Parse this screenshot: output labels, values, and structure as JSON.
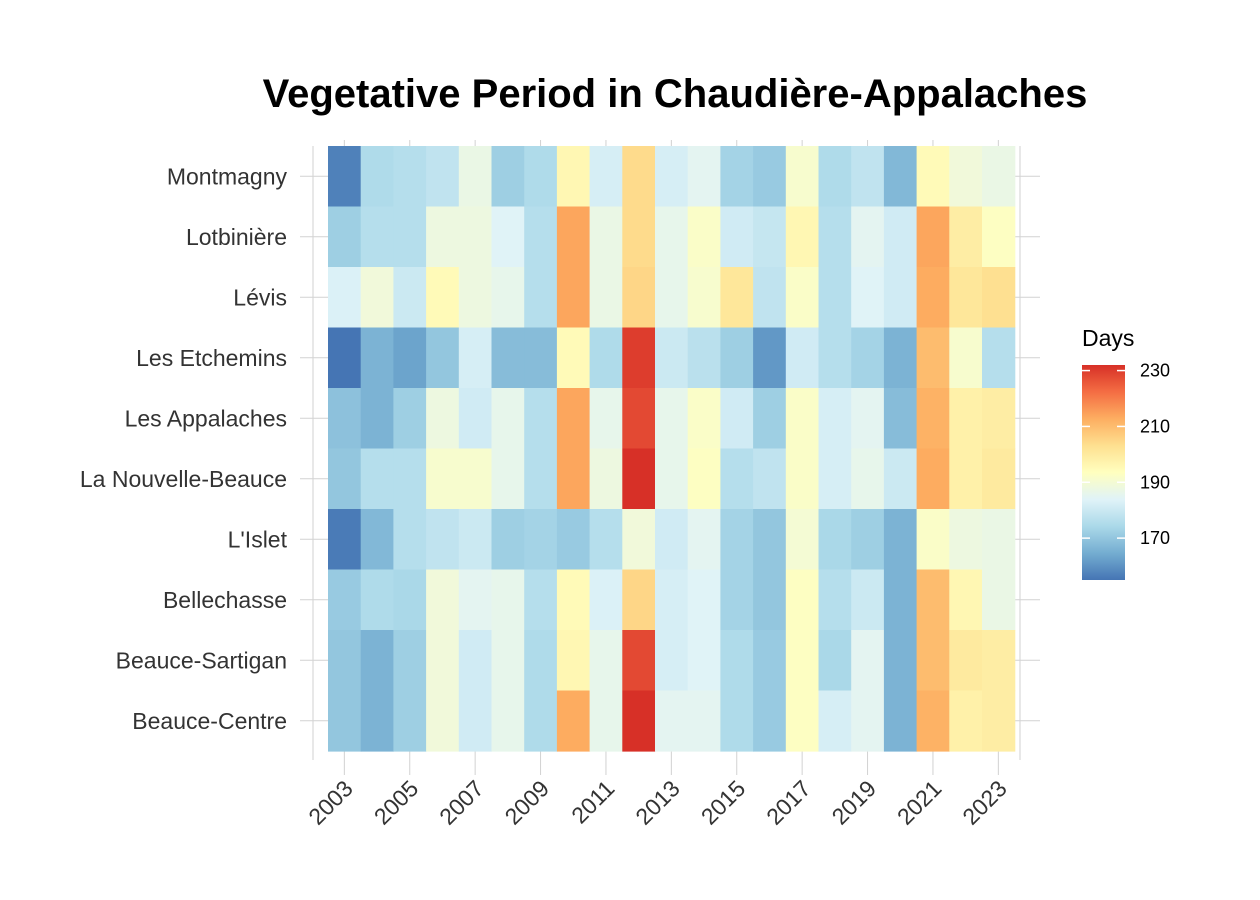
{
  "chart_data": {
    "type": "heatmap",
    "title": "Vegetative Period in Chaudière-Appalaches",
    "xlabel": "",
    "ylabel": "",
    "x": [
      2003,
      2004,
      2005,
      2006,
      2007,
      2008,
      2009,
      2010,
      2011,
      2012,
      2013,
      2014,
      2015,
      2016,
      2017,
      2018,
      2019,
      2020,
      2021,
      2022,
      2023
    ],
    "x_tick_labels": [
      "2003",
      "2005",
      "2007",
      "2009",
      "2011",
      "2013",
      "2015",
      "2017",
      "2019",
      "2021",
      "2023"
    ],
    "categories": [
      "Montmagny",
      "Lotbinière",
      "Lévis",
      "Les Etchemins",
      "Les Appalaches",
      "La Nouvelle-Beauce",
      "L'Islet",
      "Bellechasse",
      "Beauce-Sartigan",
      "Beauce-Centre"
    ],
    "values": [
      [
        157,
        175,
        176,
        178,
        187,
        172,
        175,
        196,
        182,
        204,
        182,
        185,
        173,
        171,
        191,
        175,
        178,
        167,
        195,
        189,
        187
      ],
      [
        172,
        176,
        176,
        188,
        188,
        184,
        176,
        214,
        187,
        204,
        186,
        192,
        181,
        179,
        196,
        176,
        185,
        181,
        214,
        199,
        193
      ],
      [
        183,
        189,
        180,
        195,
        188,
        186,
        176,
        214,
        187,
        205,
        186,
        191,
        201,
        178,
        192,
        176,
        184,
        181,
        213,
        201,
        203
      ],
      [
        155,
        166,
        163,
        170,
        182,
        168,
        168,
        195,
        175,
        230,
        180,
        177,
        172,
        161,
        181,
        176,
        173,
        166,
        210,
        191,
        176
      ],
      [
        169,
        166,
        172,
        188,
        181,
        186,
        176,
        214,
        186,
        228,
        186,
        192,
        181,
        172,
        192,
        182,
        185,
        168,
        212,
        198,
        199
      ],
      [
        170,
        176,
        176,
        191,
        191,
        186,
        176,
        214,
        188,
        232,
        186,
        193,
        176,
        178,
        192,
        182,
        186,
        180,
        213,
        198,
        200
      ],
      [
        156,
        167,
        176,
        178,
        180,
        172,
        173,
        171,
        176,
        189,
        181,
        185,
        173,
        170,
        190,
        174,
        172,
        166,
        192,
        188,
        187
      ],
      [
        171,
        175,
        174,
        189,
        185,
        186,
        176,
        195,
        183,
        205,
        182,
        184,
        173,
        170,
        193,
        176,
        180,
        166,
        210,
        196,
        187
      ],
      [
        170,
        166,
        172,
        189,
        181,
        186,
        175,
        196,
        186,
        228,
        182,
        184,
        175,
        171,
        193,
        174,
        185,
        166,
        210,
        200,
        199
      ],
      [
        170,
        166,
        172,
        189,
        181,
        186,
        175,
        213,
        186,
        232,
        185,
        185,
        175,
        171,
        193,
        182,
        185,
        166,
        212,
        198,
        199
      ]
    ],
    "color_scale": {
      "name": "Days",
      "min": 155,
      "max": 232,
      "ticks": [
        170,
        190,
        210,
        230
      ],
      "stops": [
        "#4575b4",
        "#74add1",
        "#abd9e9",
        "#e0f3f8",
        "#ffffbf",
        "#fee090",
        "#fdae61",
        "#f46d43",
        "#d73027"
      ]
    },
    "legend": "right",
    "grid": true
  }
}
